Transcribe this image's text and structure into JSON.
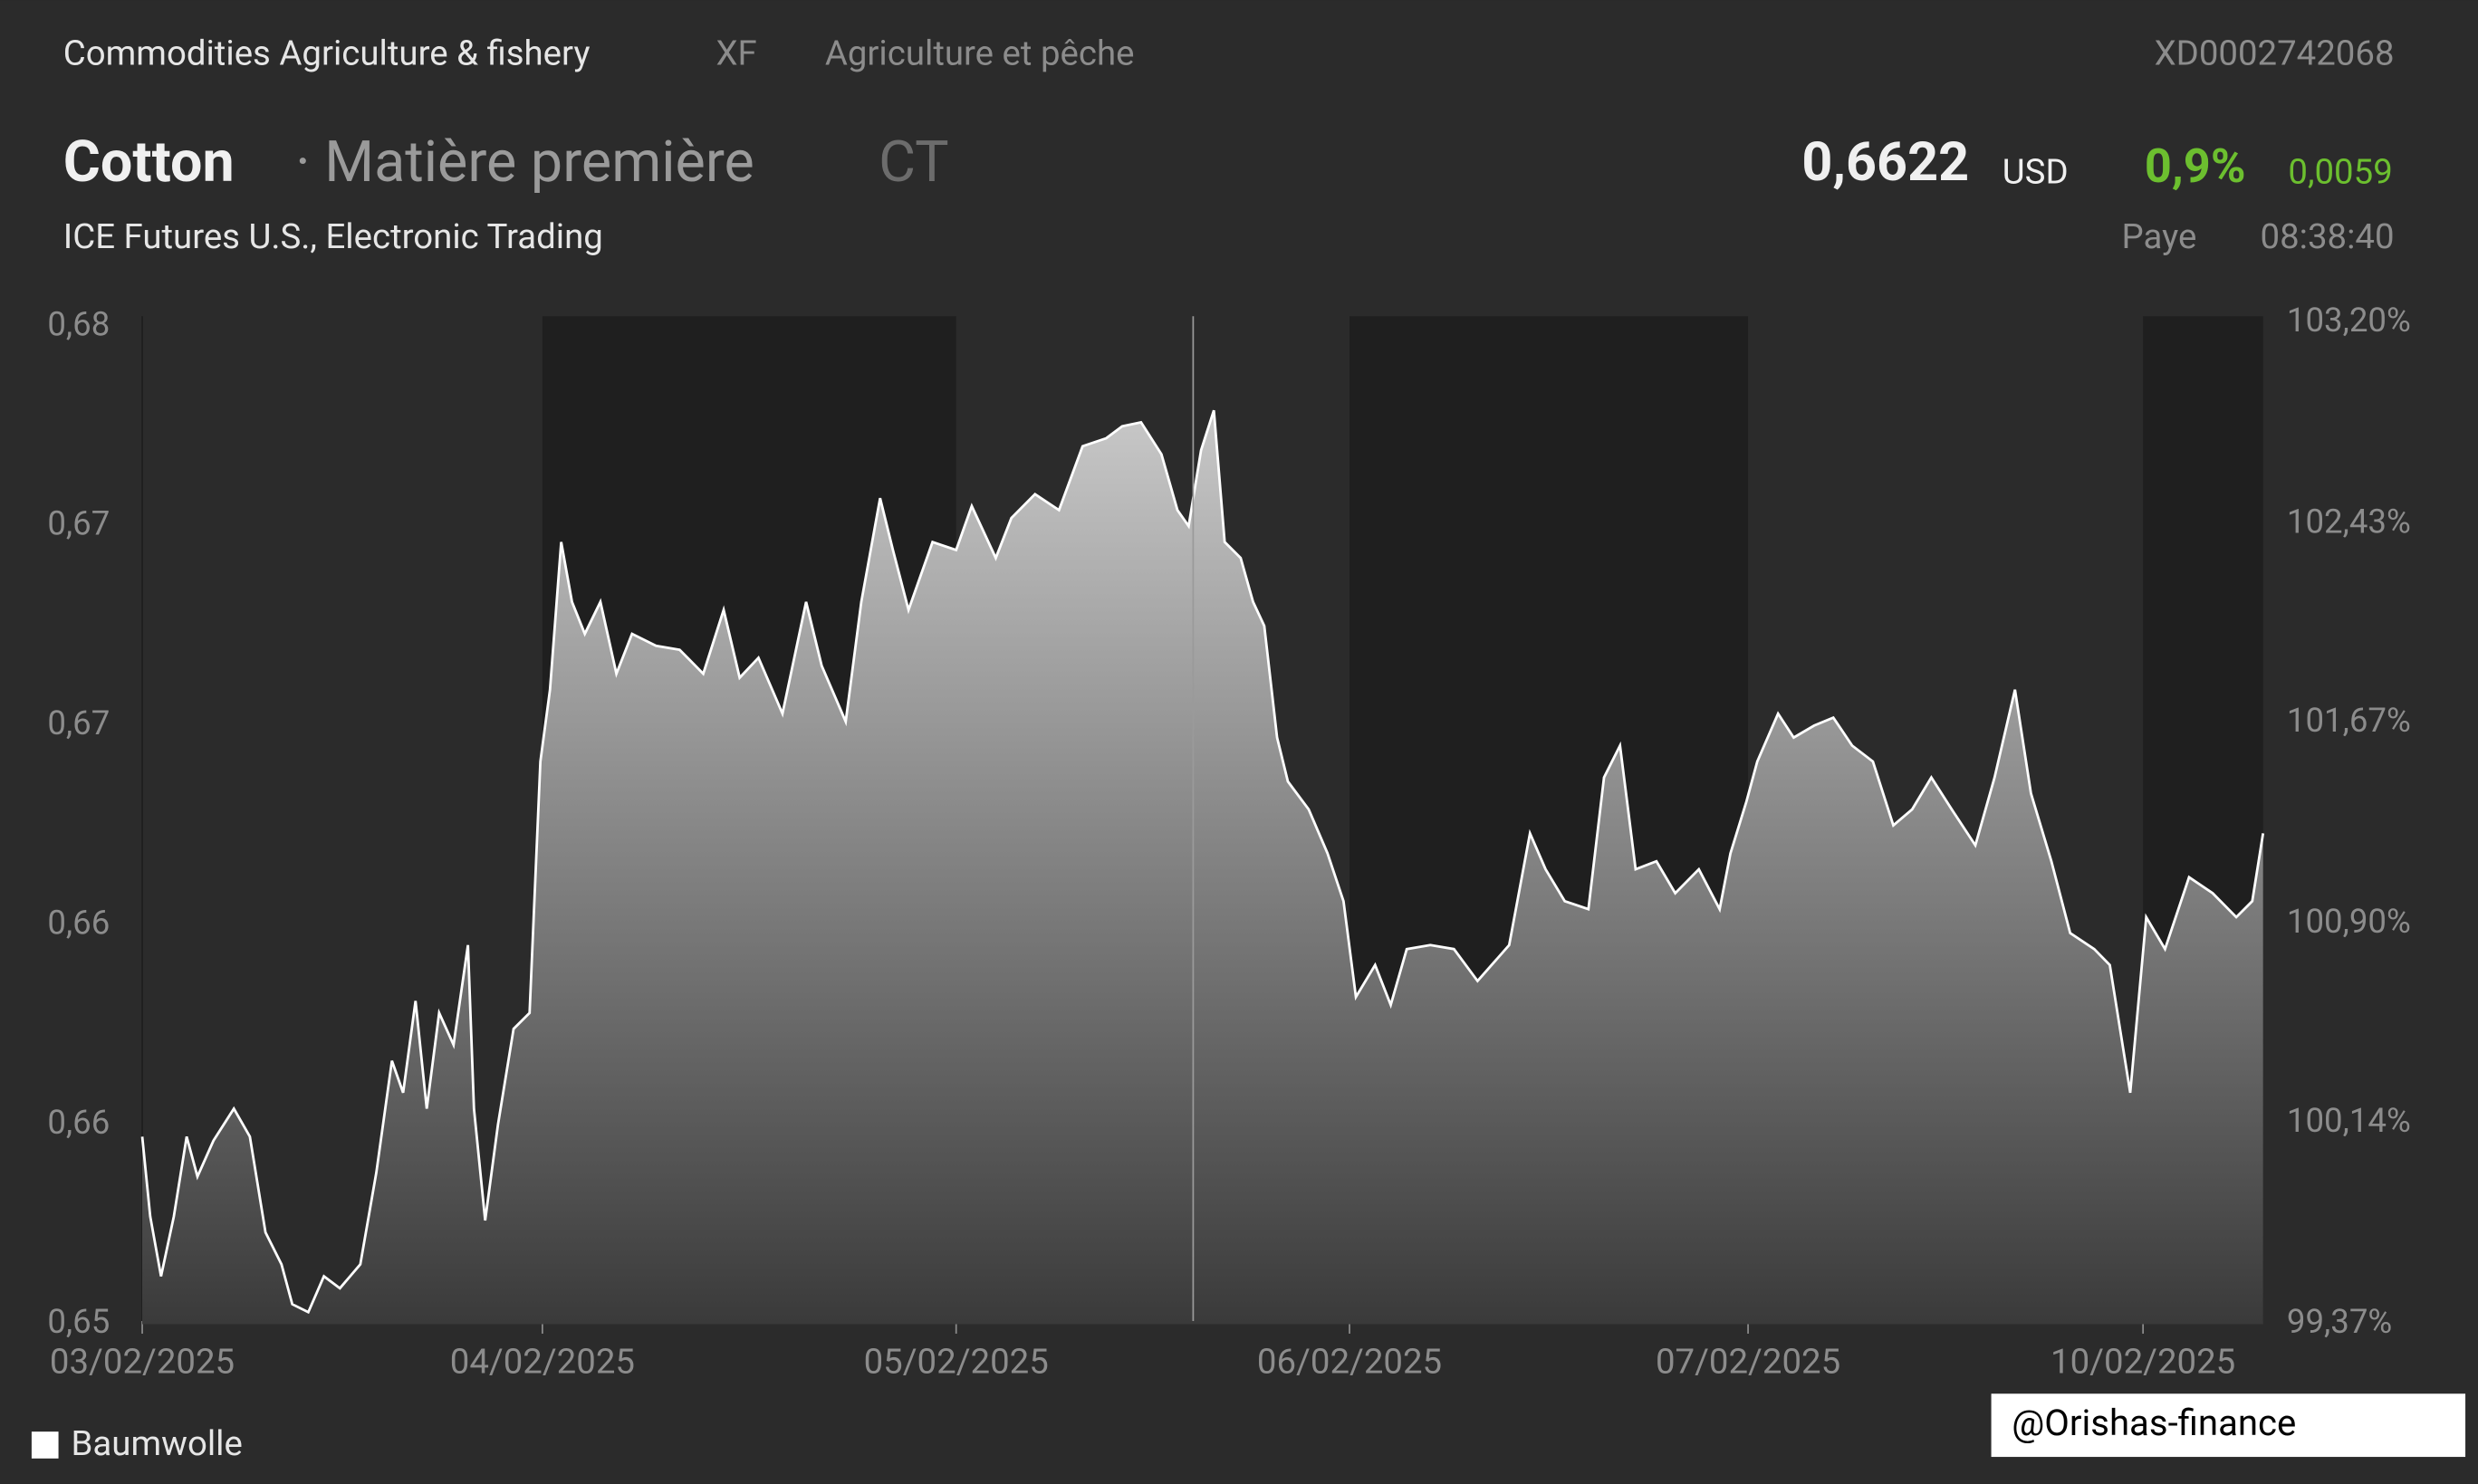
{
  "chart_data": {
    "type": "area",
    "header": {
      "category": "Commodities Agriculture & fishery",
      "code": "XF",
      "category_fr": "Agriculture et pêche",
      "isin": "XD0002742068",
      "name": "Cotton",
      "kind": "· Matière première",
      "symbol": "CT",
      "price": "0,6622",
      "currency": "USD",
      "change_pct": "0,9%",
      "change_abs": "0,0059",
      "exchange": "ICE Futures U.S., Electronic Trading",
      "status": "Paye",
      "time": "08:38:40"
    },
    "xlim": [
      0,
      5.3
    ],
    "xticks": [
      {
        "value": 0,
        "label": "03/02/2025"
      },
      {
        "value": 1,
        "label": "04/02/2025"
      },
      {
        "value": 2.034,
        "label": "05/02/2025"
      },
      {
        "value": 3.017,
        "label": "06/02/2025"
      },
      {
        "value": 4.013,
        "label": "07/02/2025"
      },
      {
        "value": 5,
        "label": "10/02/2025"
      }
    ],
    "ylim": [
      0.6525,
      0.6776
    ],
    "yticks": [
      {
        "value": 0.6525,
        "label": "0,65"
      },
      {
        "value": 0.6575,
        "label": "0,66"
      },
      {
        "value": 0.6625,
        "label": "0,66"
      },
      {
        "value": 0.6675,
        "label": "0,67"
      },
      {
        "value": 0.6725,
        "label": "0,67"
      },
      {
        "value": 0.6775,
        "label": "0,68"
      }
    ],
    "y2lim": [
      99.37,
      103.2
    ],
    "y2ticks": [
      {
        "value": 99.37,
        "label": "99,37%"
      },
      {
        "value": 100.14,
        "label": "100,14%"
      },
      {
        "value": 100.9,
        "label": "100,90%"
      },
      {
        "value": 101.67,
        "label": "101,67%"
      },
      {
        "value": 102.43,
        "label": "102,43%"
      },
      {
        "value": 103.2,
        "label": "103,20%"
      }
    ],
    "series": [
      {
        "name": "Baumwolle",
        "color": "#ffffff",
        "x": [
          0,
          0.02,
          0.047,
          0.079,
          0.111,
          0.138,
          0.178,
          0.229,
          0.269,
          0.308,
          0.348,
          0.375,
          0.415,
          0.454,
          0.494,
          0.545,
          0.585,
          0.624,
          0.652,
          0.683,
          0.711,
          0.742,
          0.778,
          0.814,
          0.829,
          0.857,
          0.889,
          0.928,
          0.968,
          0.995,
          1.019,
          1.047,
          1.074,
          1.106,
          1.145,
          1.185,
          1.224,
          1.284,
          1.343,
          1.402,
          1.453,
          1.493,
          1.54,
          1.6,
          1.659,
          1.698,
          1.758,
          1.797,
          1.844,
          1.876,
          1.915,
          1.975,
          2.034,
          2.073,
          2.133,
          2.172,
          2.231,
          2.291,
          2.35,
          2.409,
          2.449,
          2.496,
          2.547,
          2.587,
          2.615,
          2.646,
          2.678,
          2.705,
          2.745,
          2.776,
          2.804,
          2.836,
          2.863,
          2.915,
          2.962,
          3.002,
          3.033,
          3.081,
          3.12,
          3.16,
          3.219,
          3.278,
          3.337,
          3.416,
          3.468,
          3.507,
          3.555,
          3.614,
          3.653,
          3.693,
          3.732,
          3.784,
          3.831,
          3.89,
          3.942,
          3.969,
          4.009,
          4.036,
          4.088,
          4.127,
          4.178,
          4.226,
          4.273,
          4.325,
          4.376,
          4.423,
          4.471,
          4.522,
          4.581,
          4.629,
          4.68,
          4.72,
          4.771,
          4.818,
          4.878,
          4.917,
          4.968,
          5.008,
          5.055,
          5.115,
          5.174,
          5.233,
          5.273,
          5.3
        ],
        "values": [
          0.6572,
          0.6552,
          0.6537,
          0.6552,
          0.6572,
          0.6562,
          0.6571,
          0.6579,
          0.6572,
          0.6548,
          0.654,
          0.653,
          0.6528,
          0.6537,
          0.6534,
          0.654,
          0.6563,
          0.6591,
          0.6583,
          0.6606,
          0.6579,
          0.6603,
          0.6595,
          0.662,
          0.6579,
          0.6551,
          0.6575,
          0.6599,
          0.6603,
          0.6666,
          0.6684,
          0.6721,
          0.6706,
          0.6698,
          0.6706,
          0.6688,
          0.6698,
          0.6695,
          0.6694,
          0.6688,
          0.6704,
          0.6687,
          0.6692,
          0.6678,
          0.6706,
          0.669,
          0.6676,
          0.6706,
          0.6732,
          0.6719,
          0.6704,
          0.6721,
          0.6719,
          0.673,
          0.6717,
          0.6727,
          0.6733,
          0.6729,
          0.6745,
          0.6747,
          0.675,
          0.6751,
          0.6743,
          0.6729,
          0.6725,
          0.6744,
          0.6754,
          0.6721,
          0.6717,
          0.6706,
          0.67,
          0.6672,
          0.6661,
          0.6654,
          0.6643,
          0.6631,
          0.6607,
          0.6615,
          0.6605,
          0.6619,
          0.662,
          0.6619,
          0.6611,
          0.662,
          0.6648,
          0.6639,
          0.6631,
          0.6629,
          0.6662,
          0.667,
          0.6639,
          0.6641,
          0.6633,
          0.6639,
          0.6629,
          0.6643,
          0.6656,
          0.6666,
          0.6678,
          0.6672,
          0.6675,
          0.6677,
          0.667,
          0.6666,
          0.665,
          0.6654,
          0.6662,
          0.6654,
          0.6645,
          0.6662,
          0.6684,
          0.6658,
          0.6641,
          0.6623,
          0.6619,
          0.6615,
          0.6583,
          0.6627,
          0.6619,
          0.6637,
          0.6633,
          0.6627,
          0.6631,
          0.6648
        ]
      }
    ],
    "watermark": "@Orishas-finance"
  }
}
